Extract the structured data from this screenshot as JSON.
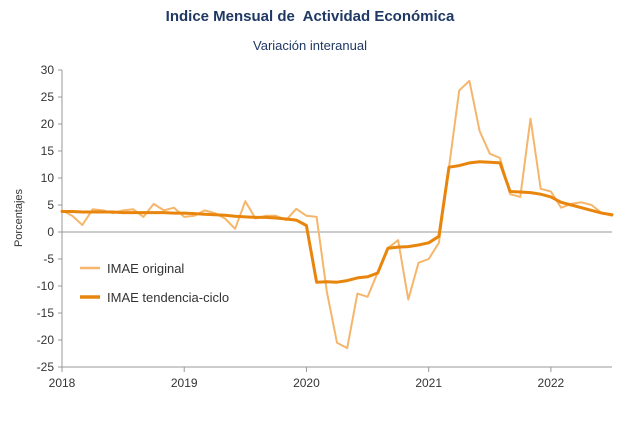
{
  "chart_data": {
    "type": "line",
    "title": "Indice Mensual de  Actividad Económica",
    "subtitle": "Variación interanual",
    "xlabel": "",
    "ylabel": "Porcentajes",
    "ylim": [
      -25,
      30
    ],
    "yticks": [
      30,
      25,
      20,
      15,
      10,
      5,
      0,
      -5,
      -10,
      -15,
      -20,
      -25
    ],
    "xticks": [
      "2018",
      "2019",
      "2020",
      "2021",
      "2022"
    ],
    "x_start": "2018-01",
    "grid": false,
    "legend_position": "bottom-left",
    "colors": {
      "original": "#f5b66b",
      "trend": "#e8850c",
      "axis": "#999999"
    },
    "series": [
      {
        "name": "IMAE original",
        "values": [
          4.0,
          3.0,
          1.3,
          4.2,
          4.0,
          3.5,
          4.0,
          4.2,
          2.8,
          5.2,
          4.0,
          4.5,
          2.8,
          3.0,
          4.0,
          3.5,
          2.5,
          0.6,
          5.7,
          2.5,
          3.0,
          3.0,
          2.2,
          4.3,
          3.0,
          2.8,
          -11.0,
          -20.5,
          -21.5,
          -11.4,
          -12.0,
          -7.5,
          -3.0,
          -1.5,
          -12.5,
          -5.7,
          -5.0,
          -2.0,
          12.0,
          26.2,
          28.0,
          18.7,
          14.5,
          13.7,
          7.0,
          6.5,
          21.0,
          8.0,
          7.5,
          4.5,
          5.2,
          5.5,
          5.0,
          3.5,
          3.0
        ]
      },
      {
        "name": "IMAE tendencia-ciclo",
        "values": [
          3.8,
          3.8,
          3.7,
          3.7,
          3.7,
          3.7,
          3.6,
          3.6,
          3.6,
          3.6,
          3.6,
          3.5,
          3.5,
          3.4,
          3.3,
          3.2,
          3.1,
          2.9,
          2.8,
          2.7,
          2.7,
          2.6,
          2.4,
          2.2,
          1.2,
          -9.3,
          -9.2,
          -9.3,
          -9.0,
          -8.5,
          -8.3,
          -7.6,
          -3.0,
          -2.8,
          -2.7,
          -2.4,
          -2.0,
          -0.8,
          12.0,
          12.3,
          12.8,
          13.0,
          12.9,
          12.8,
          7.5,
          7.4,
          7.3,
          7.0,
          6.5,
          5.5,
          5.0,
          4.5,
          4.0,
          3.5,
          3.2
        ]
      }
    ]
  }
}
